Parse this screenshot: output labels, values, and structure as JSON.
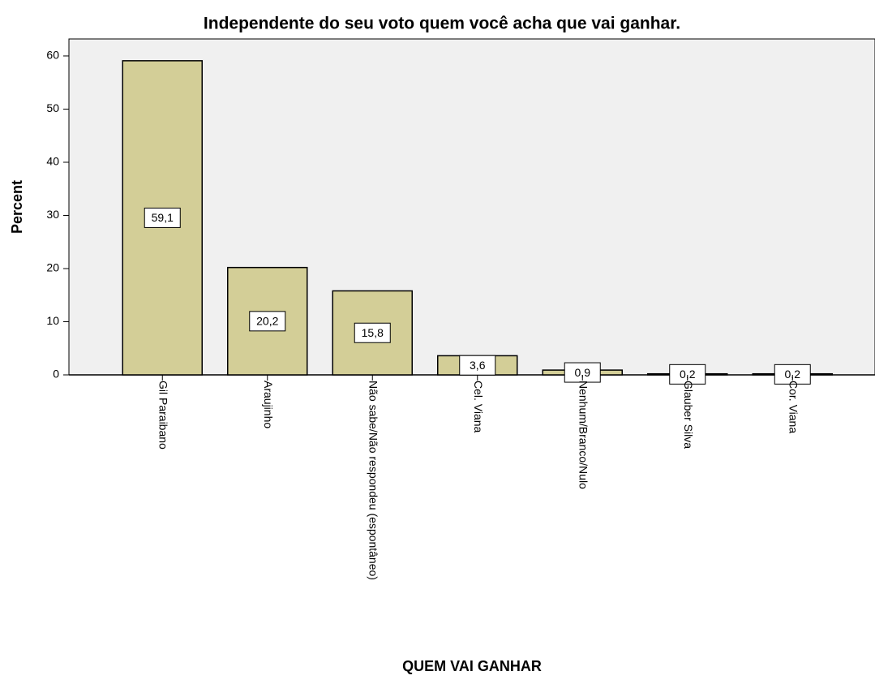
{
  "chart_data": {
    "type": "bar",
    "title": "Independente do seu voto quem você acha que vai ganhar.",
    "x_label": "QUEM VAI GANHAR",
    "y_label": "Percent",
    "categories": [
      "Gil Paraibano",
      "Araujinho",
      "Não sabe/Não respondeu (espontâneo)",
      "Cel. Viana",
      "Nenhum/Branco/Nulo",
      "Glauber Silva",
      "Cor. Viana"
    ],
    "values": [
      59.1,
      20.2,
      15.8,
      3.6,
      0.9,
      0.2,
      0.2
    ],
    "value_labels": [
      "59,1",
      "20,2",
      "15,8",
      "3,6",
      "0,9",
      "0,2",
      "0,2"
    ],
    "color": "#d3ce97",
    "ylim": [
      0,
      63.2
    ],
    "yticks": [
      0,
      10,
      20,
      30,
      40,
      50,
      60
    ]
  }
}
